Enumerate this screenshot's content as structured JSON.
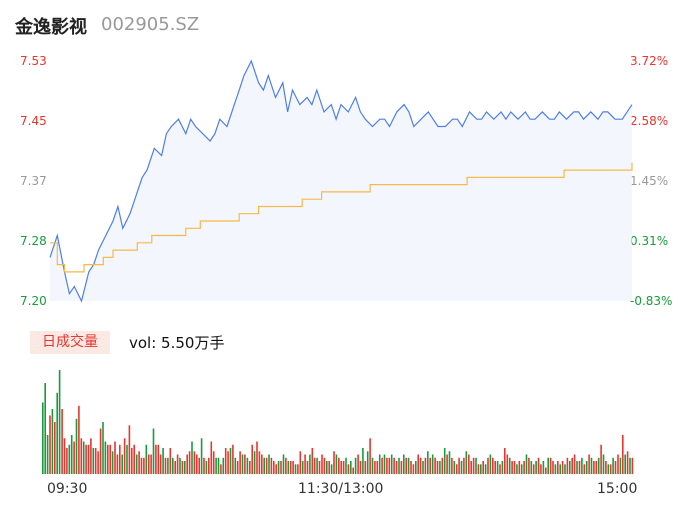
{
  "header": {
    "name": "金逸影视",
    "code": "002905.SZ"
  },
  "badge": "日成交量",
  "volume_label": "vol: 5.50万手",
  "colors": {
    "up": "#e8352f",
    "down": "#1a9a3c",
    "price": "#4f7ee8",
    "avg": "#f5b94a",
    "neutral": "#999999"
  },
  "chart_data": [
    {
      "type": "line",
      "y_left_ticks": [
        "7.53",
        "7.45",
        "7.37",
        "7.28",
        "7.20"
      ],
      "y_right_ticks": [
        "3.72%",
        "2.58%",
        "1.45%",
        "0.31%",
        "-0.83%"
      ],
      "ylim": [
        7.2,
        7.53
      ],
      "x_ticks": [
        "09:30",
        "11:30/13:00",
        "15:00"
      ],
      "series": [
        {
          "role": "price",
          "x": [
            0,
            3,
            6,
            8,
            10,
            13,
            16,
            18,
            20,
            23,
            26,
            28,
            30,
            33,
            36,
            38,
            40,
            43,
            46,
            48,
            50,
            53,
            56,
            58,
            60,
            63,
            66,
            68,
            70,
            73,
            76,
            78,
            80,
            83,
            86,
            88,
            90,
            93,
            96,
            98,
            100,
            103,
            106,
            108,
            110,
            113,
            116,
            118,
            120,
            123,
            126,
            128,
            130,
            133,
            136,
            138,
            140,
            143,
            146,
            148,
            150,
            153,
            156,
            158,
            160,
            163,
            166,
            168,
            170,
            173,
            176,
            178,
            180,
            183,
            186,
            188,
            190,
            193,
            196,
            198,
            200,
            203,
            206,
            208,
            210,
            213,
            216,
            218,
            220,
            223,
            226,
            228,
            230,
            233,
            236,
            238,
            240
          ],
          "values": [
            7.26,
            7.29,
            7.24,
            7.21,
            7.22,
            7.2,
            7.24,
            7.25,
            7.27,
            7.29,
            7.31,
            7.33,
            7.3,
            7.32,
            7.35,
            7.37,
            7.38,
            7.41,
            7.4,
            7.43,
            7.44,
            7.45,
            7.43,
            7.45,
            7.44,
            7.43,
            7.42,
            7.43,
            7.45,
            7.44,
            7.47,
            7.49,
            7.51,
            7.53,
            7.5,
            7.49,
            7.51,
            7.48,
            7.5,
            7.46,
            7.49,
            7.47,
            7.48,
            7.47,
            7.49,
            7.46,
            7.47,
            7.45,
            7.47,
            7.46,
            7.48,
            7.46,
            7.45,
            7.44,
            7.45,
            7.45,
            7.44,
            7.46,
            7.47,
            7.46,
            7.44,
            7.45,
            7.46,
            7.45,
            7.44,
            7.44,
            7.45,
            7.45,
            7.44,
            7.46,
            7.45,
            7.45,
            7.46,
            7.45,
            7.46,
            7.45,
            7.46,
            7.45,
            7.46,
            7.45,
            7.45,
            7.46,
            7.45,
            7.45,
            7.46,
            7.45,
            7.46,
            7.46,
            7.45,
            7.46,
            7.45,
            7.46,
            7.46,
            7.45,
            7.45,
            7.46,
            7.47
          ]
        },
        {
          "role": "average",
          "x": [
            0,
            3,
            6,
            10,
            14,
            18,
            22,
            26,
            30,
            36,
            42,
            48,
            56,
            62,
            70,
            78,
            86,
            96,
            104,
            112,
            122,
            132,
            142,
            152,
            162,
            172,
            182,
            192,
            202,
            212,
            222,
            232,
            240
          ],
          "values": [
            7.28,
            7.25,
            7.24,
            7.24,
            7.25,
            7.25,
            7.26,
            7.27,
            7.27,
            7.28,
            7.29,
            7.29,
            7.3,
            7.31,
            7.31,
            7.32,
            7.33,
            7.33,
            7.34,
            7.35,
            7.35,
            7.36,
            7.36,
            7.36,
            7.36,
            7.37,
            7.37,
            7.37,
            7.37,
            7.38,
            7.38,
            7.38,
            7.39
          ]
        }
      ]
    },
    {
      "type": "bar",
      "role": "volume",
      "values": [
        22,
        28,
        12,
        18,
        20,
        16,
        25,
        32,
        20,
        11,
        8,
        9,
        12,
        10,
        17,
        21,
        11,
        10,
        9,
        9,
        11,
        8,
        8,
        7,
        14,
        16,
        10,
        9,
        9,
        7,
        10,
        6,
        9,
        6,
        11,
        9,
        15,
        8,
        9,
        6,
        7,
        5,
        5,
        9,
        6,
        6,
        14,
        9,
        9,
        6,
        8,
        5,
        5,
        8,
        5,
        4,
        6,
        5,
        4,
        4,
        6,
        7,
        10,
        7,
        6,
        5,
        11,
        5,
        4,
        5,
        10,
        7,
        5,
        5,
        3,
        5,
        8,
        7,
        8,
        9,
        5,
        4,
        7,
        6,
        6,
        5,
        4,
        9,
        7,
        10,
        7,
        6,
        5,
        5,
        6,
        5,
        4,
        3,
        4,
        4,
        6,
        5,
        4,
        4,
        4,
        3,
        3,
        7,
        4,
        6,
        4,
        6,
        8,
        5,
        5,
        4,
        6,
        5,
        4,
        4,
        3,
        7,
        6,
        5,
        4,
        4,
        5,
        3,
        4,
        2,
        5,
        6,
        4,
        8,
        4,
        7,
        11,
        5,
        4,
        4,
        6,
        5,
        6,
        5,
        5,
        6,
        5,
        4,
        5,
        4,
        6,
        5,
        5,
        4,
        3,
        4,
        6,
        5,
        4,
        5,
        7,
        5,
        6,
        5,
        4,
        4,
        5,
        8,
        6,
        7,
        5,
        4,
        3,
        5,
        4,
        5,
        7,
        6,
        4,
        5,
        5,
        3,
        3,
        4,
        3,
        5,
        6,
        5,
        4,
        4,
        3,
        4,
        8,
        6,
        5,
        4,
        4,
        3,
        4,
        3,
        4,
        6,
        5,
        4,
        3,
        4,
        5,
        3,
        4,
        2,
        5,
        5,
        4,
        3,
        4,
        3,
        4,
        3,
        5,
        4,
        5,
        6,
        4,
        4,
        5,
        3,
        4,
        6,
        5,
        4,
        4,
        5,
        9,
        6,
        4,
        3,
        3,
        5,
        4,
        6,
        5,
        12,
        6,
        7,
        5,
        5
      ],
      "colors": "gggrgrggrrrggrgrrgrrrgrrrggrrgrrrgrgrrrgrrrgrrgrrrgrgrgrrgrgrrgrrrgrgrrrggrgrrgrgrrgrgrrgrrrgrgrrrgrgrgrrgrrgrrgrrgrrrgrgrgrrrgrgrgrrgrgrgrrgrgrrgrrgrgrgrrgrrgrgrgrrgrgrgrgrrgrgrrrgrgrgrgrrgrgrrgrrgrgrgrgrgrrgrgrrgrgrgrgrrgrgrgrgrrgrgrgrgrrgrgrgrgrrrgrgrgrgrgrrgrgrgrrg"
    }
  ]
}
